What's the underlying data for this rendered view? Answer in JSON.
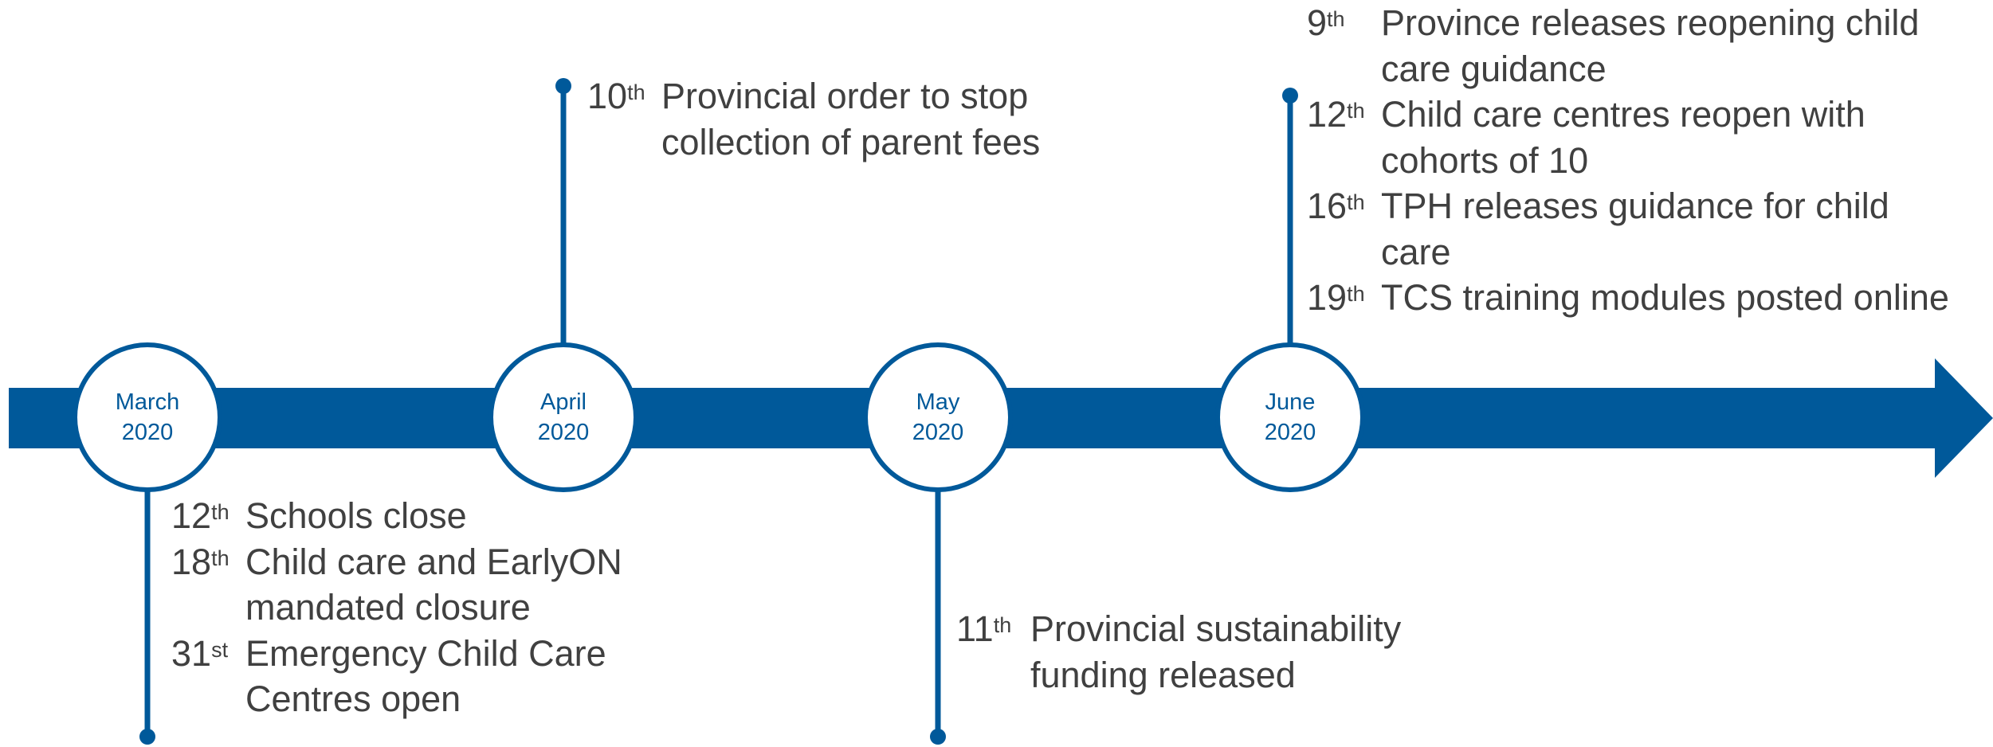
{
  "milestones": [
    {
      "month": "March",
      "year": "2020",
      "events": [
        {
          "day": "12",
          "suffix": "th",
          "text": "Schools close"
        },
        {
          "day": "18",
          "suffix": "th",
          "text": "Child care and EarlyON mandated closure"
        },
        {
          "day": "31",
          "suffix": "st",
          "text": "Emergency Child Care Centres open"
        }
      ]
    },
    {
      "month": "April",
      "year": "2020",
      "events": [
        {
          "day": "10",
          "suffix": "th",
          "text": "Provincial order to stop collection of parent fees"
        }
      ]
    },
    {
      "month": "May",
      "year": "2020",
      "events": [
        {
          "day": "11",
          "suffix": "th",
          "text": "Provincial sustainability funding released"
        }
      ]
    },
    {
      "month": "June",
      "year": "2020",
      "events": [
        {
          "day": "9",
          "suffix": "th",
          "text": "Province releases reopening child care guidance"
        },
        {
          "day": "12",
          "suffix": "th",
          "text": "Child care centres reopen with cohorts of 10"
        },
        {
          "day": "16",
          "suffix": "th",
          "text": "TPH releases guidance for child care"
        },
        {
          "day": "19",
          "suffix": "th",
          "text": "TCS training modules posted online"
        }
      ]
    }
  ]
}
